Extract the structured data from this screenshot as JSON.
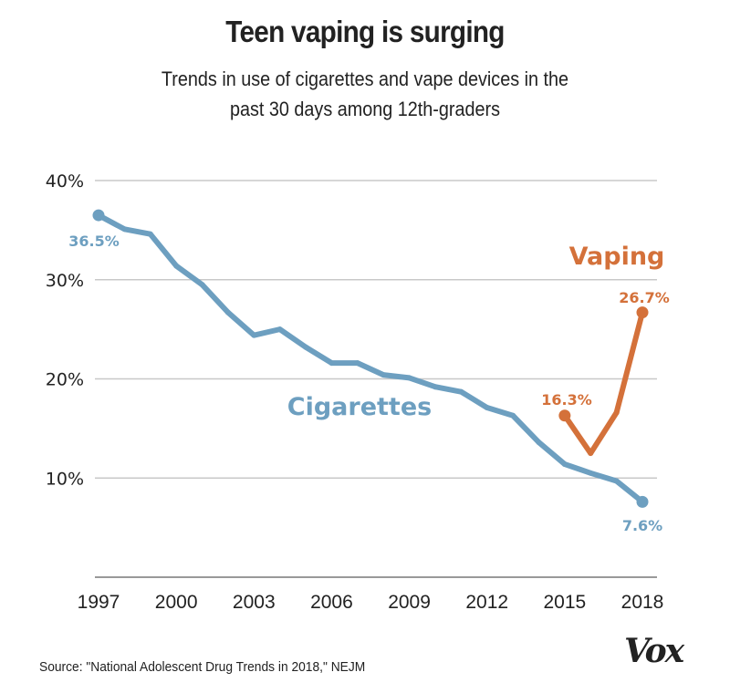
{
  "chart_data": {
    "type": "line",
    "title": "Teen vaping is surging",
    "subtitle": "Trends in use of cigarettes and vape devices in the past 30 days among 12th-graders",
    "xlabel": "",
    "ylabel": "",
    "xlim": [
      1997,
      2018
    ],
    "ylim": [
      0,
      40
    ],
    "grid": true,
    "x_ticks": [
      "1997",
      "2000",
      "2003",
      "2006",
      "2009",
      "2012",
      "2015",
      "2018"
    ],
    "x_tick_values": [
      1997,
      2000,
      2003,
      2006,
      2009,
      2012,
      2015,
      2018
    ],
    "y_ticks": [
      "40%",
      "30%",
      "20%",
      "10%"
    ],
    "y_tick_values": [
      40,
      30,
      20,
      10
    ],
    "legend": "inline-labels",
    "series": [
      {
        "name": "Cigarettes",
        "color": "#6d9fc0",
        "x": [
          1997,
          1998,
          1999,
          2000,
          2001,
          2002,
          2003,
          2004,
          2005,
          2006,
          2007,
          2008,
          2009,
          2010,
          2011,
          2012,
          2013,
          2014,
          2015,
          2016,
          2017,
          2018
        ],
        "values": [
          36.5,
          35.1,
          34.6,
          31.4,
          29.5,
          26.7,
          24.4,
          25.0,
          23.2,
          21.6,
          21.6,
          20.4,
          20.1,
          19.2,
          18.7,
          17.1,
          16.3,
          13.6,
          11.4,
          10.5,
          9.7,
          7.6
        ],
        "start_label": "36.5%",
        "end_label": "7.6%"
      },
      {
        "name": "Vaping",
        "color": "#d4713a",
        "x": [
          2015,
          2016,
          2017,
          2018
        ],
        "values": [
          16.3,
          12.5,
          16.6,
          26.7
        ],
        "start_label": "16.3%",
        "end_label": "26.7%"
      }
    ]
  },
  "footer": {
    "source": "Source: \"National Adolescent Drug Trends in 2018,\" NEJM",
    "logo": "Vox"
  }
}
